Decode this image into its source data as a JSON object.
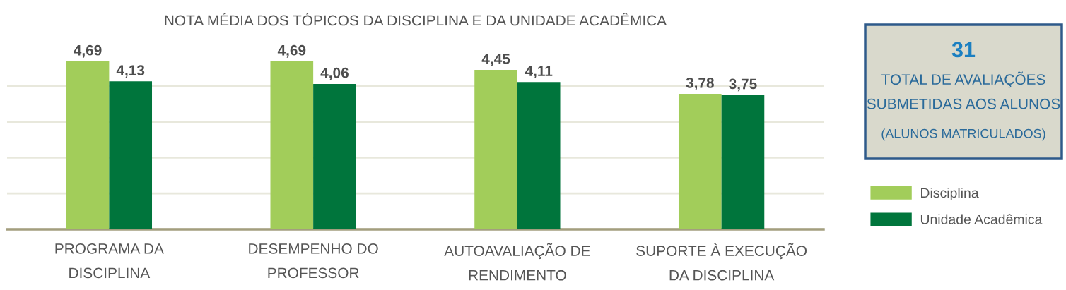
{
  "chart_data": [
    {
      "type": "bar",
      "title": "NOTA MÉDIA DOS TÓPICOS DA DISCIPLINA E DA UNIDADE ACADÊMICA",
      "categories": [
        "PROGRAMA DA\nDISCIPLINA",
        "DESEMPENHO DO\nPROFESSOR",
        "AUTOAVALIAÇÃO DE\nRENDIMENTO",
        "SUPORTE À EXECUÇÃO\nDA DISCIPLINA"
      ],
      "series": [
        {
          "name": "Disciplina",
          "color": "#a2cd5a",
          "values": [
            4.69,
            4.69,
            4.45,
            3.78
          ],
          "value_labels": [
            "4,69",
            "4,69",
            "4,45",
            "3,78"
          ]
        },
        {
          "name": "Unidade Acadêmica",
          "color": "#00753c",
          "values": [
            4.13,
            4.06,
            4.11,
            3.75
          ],
          "value_labels": [
            "4,13",
            "4,06",
            "4,11",
            "3,75"
          ]
        }
      ],
      "tick_labels": "x",
      "grid": "y",
      "legend": "right"
    },
    {
      "type": "other",
      "annotations": [
        "31",
        "TOTAL DE AVALIAÇÕES",
        "SUBMETIDAS AOS ALUNOS",
        "(ALUNOS MATRICULADOS)"
      ]
    }
  ]
}
